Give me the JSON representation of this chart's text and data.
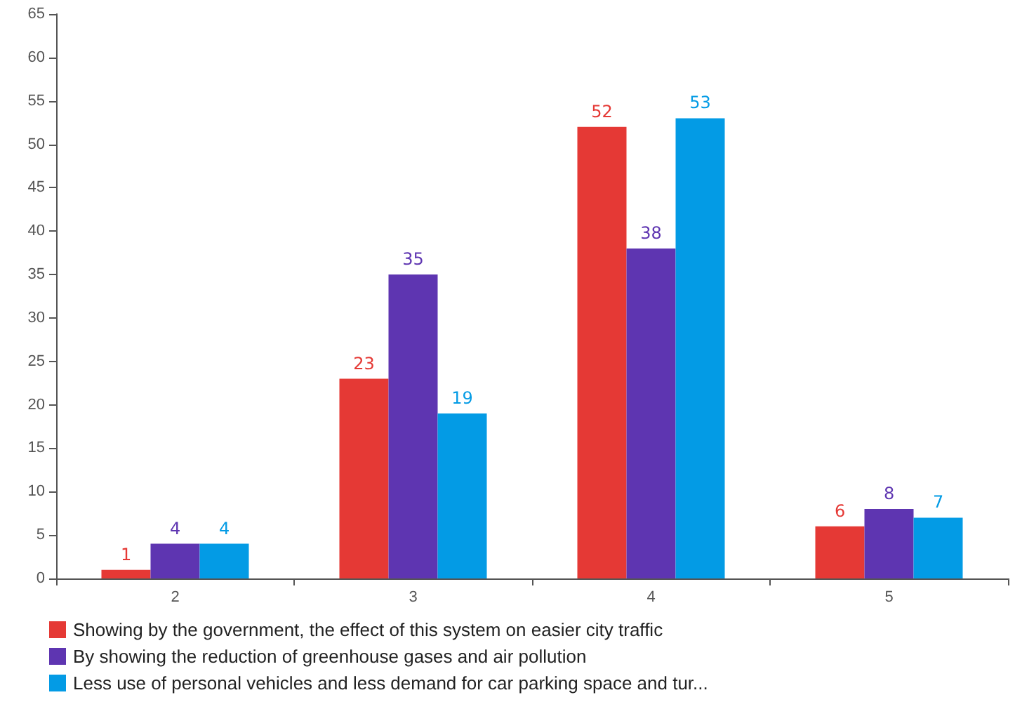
{
  "chart_data": {
    "type": "bar",
    "categories": [
      "2",
      "3",
      "4",
      "5"
    ],
    "series": [
      {
        "name": "Showing by the government, the effect of this system on easier city traffic",
        "color": "#e53935",
        "values": [
          1,
          23,
          52,
          6
        ]
      },
      {
        "name": "By showing the reduction of greenhouse gases and air pollution",
        "color": "#5e35b1",
        "values": [
          4,
          35,
          38,
          8
        ]
      },
      {
        "name": "Less use of personal vehicles and less demand for car parking space and tur...",
        "color": "#039be5",
        "values": [
          4,
          19,
          53,
          7
        ]
      }
    ],
    "ylim": [
      0,
      65
    ],
    "yticks": [
      0,
      5,
      10,
      15,
      20,
      25,
      30,
      35,
      40,
      45,
      50,
      55,
      60,
      65
    ],
    "grid": false,
    "legend": "bottom",
    "data_labels": true
  }
}
